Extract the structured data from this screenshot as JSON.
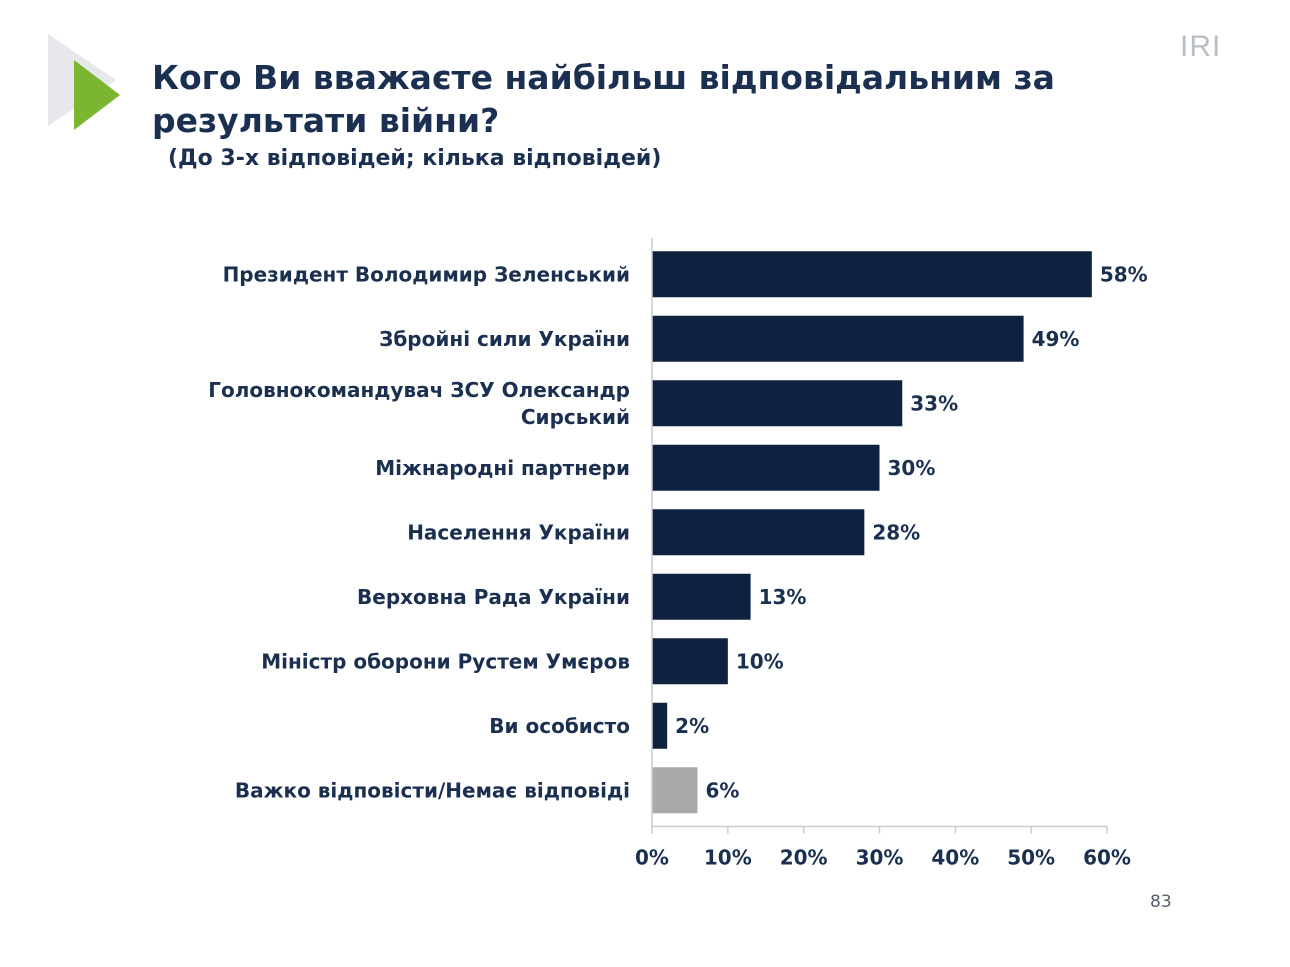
{
  "header": {
    "brand": "IRI",
    "title": "Кого Ви вважаєте найбільш відповідальним за результати війни?",
    "subtitle": "(До 3-х відповідей; кілька відповідей)",
    "page_number": "83"
  },
  "colors": {
    "bar": "#0e2240",
    "bar_muted": "#a9a9a9",
    "logo_green": "#7cb531",
    "logo_grey": "#e6e8ec"
  },
  "chart_data": {
    "type": "bar",
    "orientation": "horizontal",
    "categories": [
      [
        "Президент Володимир Зеленський"
      ],
      [
        "Збройні сили України"
      ],
      [
        "Головнокомандувач ЗСУ Олександр",
        "Сирський"
      ],
      [
        "Міжнародні партнери"
      ],
      [
        "Населення України"
      ],
      [
        "Верховна Рада України"
      ],
      [
        "Міністр оборони Рустем Умєров"
      ],
      [
        "Ви особисто"
      ],
      [
        "Важко відповісти/Немає відповіді"
      ]
    ],
    "values": [
      58,
      49,
      33,
      30,
      28,
      13,
      10,
      2,
      6
    ],
    "value_labels": [
      "58%",
      "49%",
      "33%",
      "30%",
      "28%",
      "13%",
      "10%",
      "2%",
      "6%"
    ],
    "muted": [
      false,
      false,
      false,
      false,
      false,
      false,
      false,
      false,
      true
    ],
    "xlim": [
      0,
      60
    ],
    "xticks": [
      0,
      10,
      20,
      30,
      40,
      50,
      60
    ],
    "xtick_labels": [
      "0%",
      "10%",
      "20%",
      "30%",
      "40%",
      "50%",
      "60%"
    ],
    "grid": false,
    "legend": "none"
  }
}
